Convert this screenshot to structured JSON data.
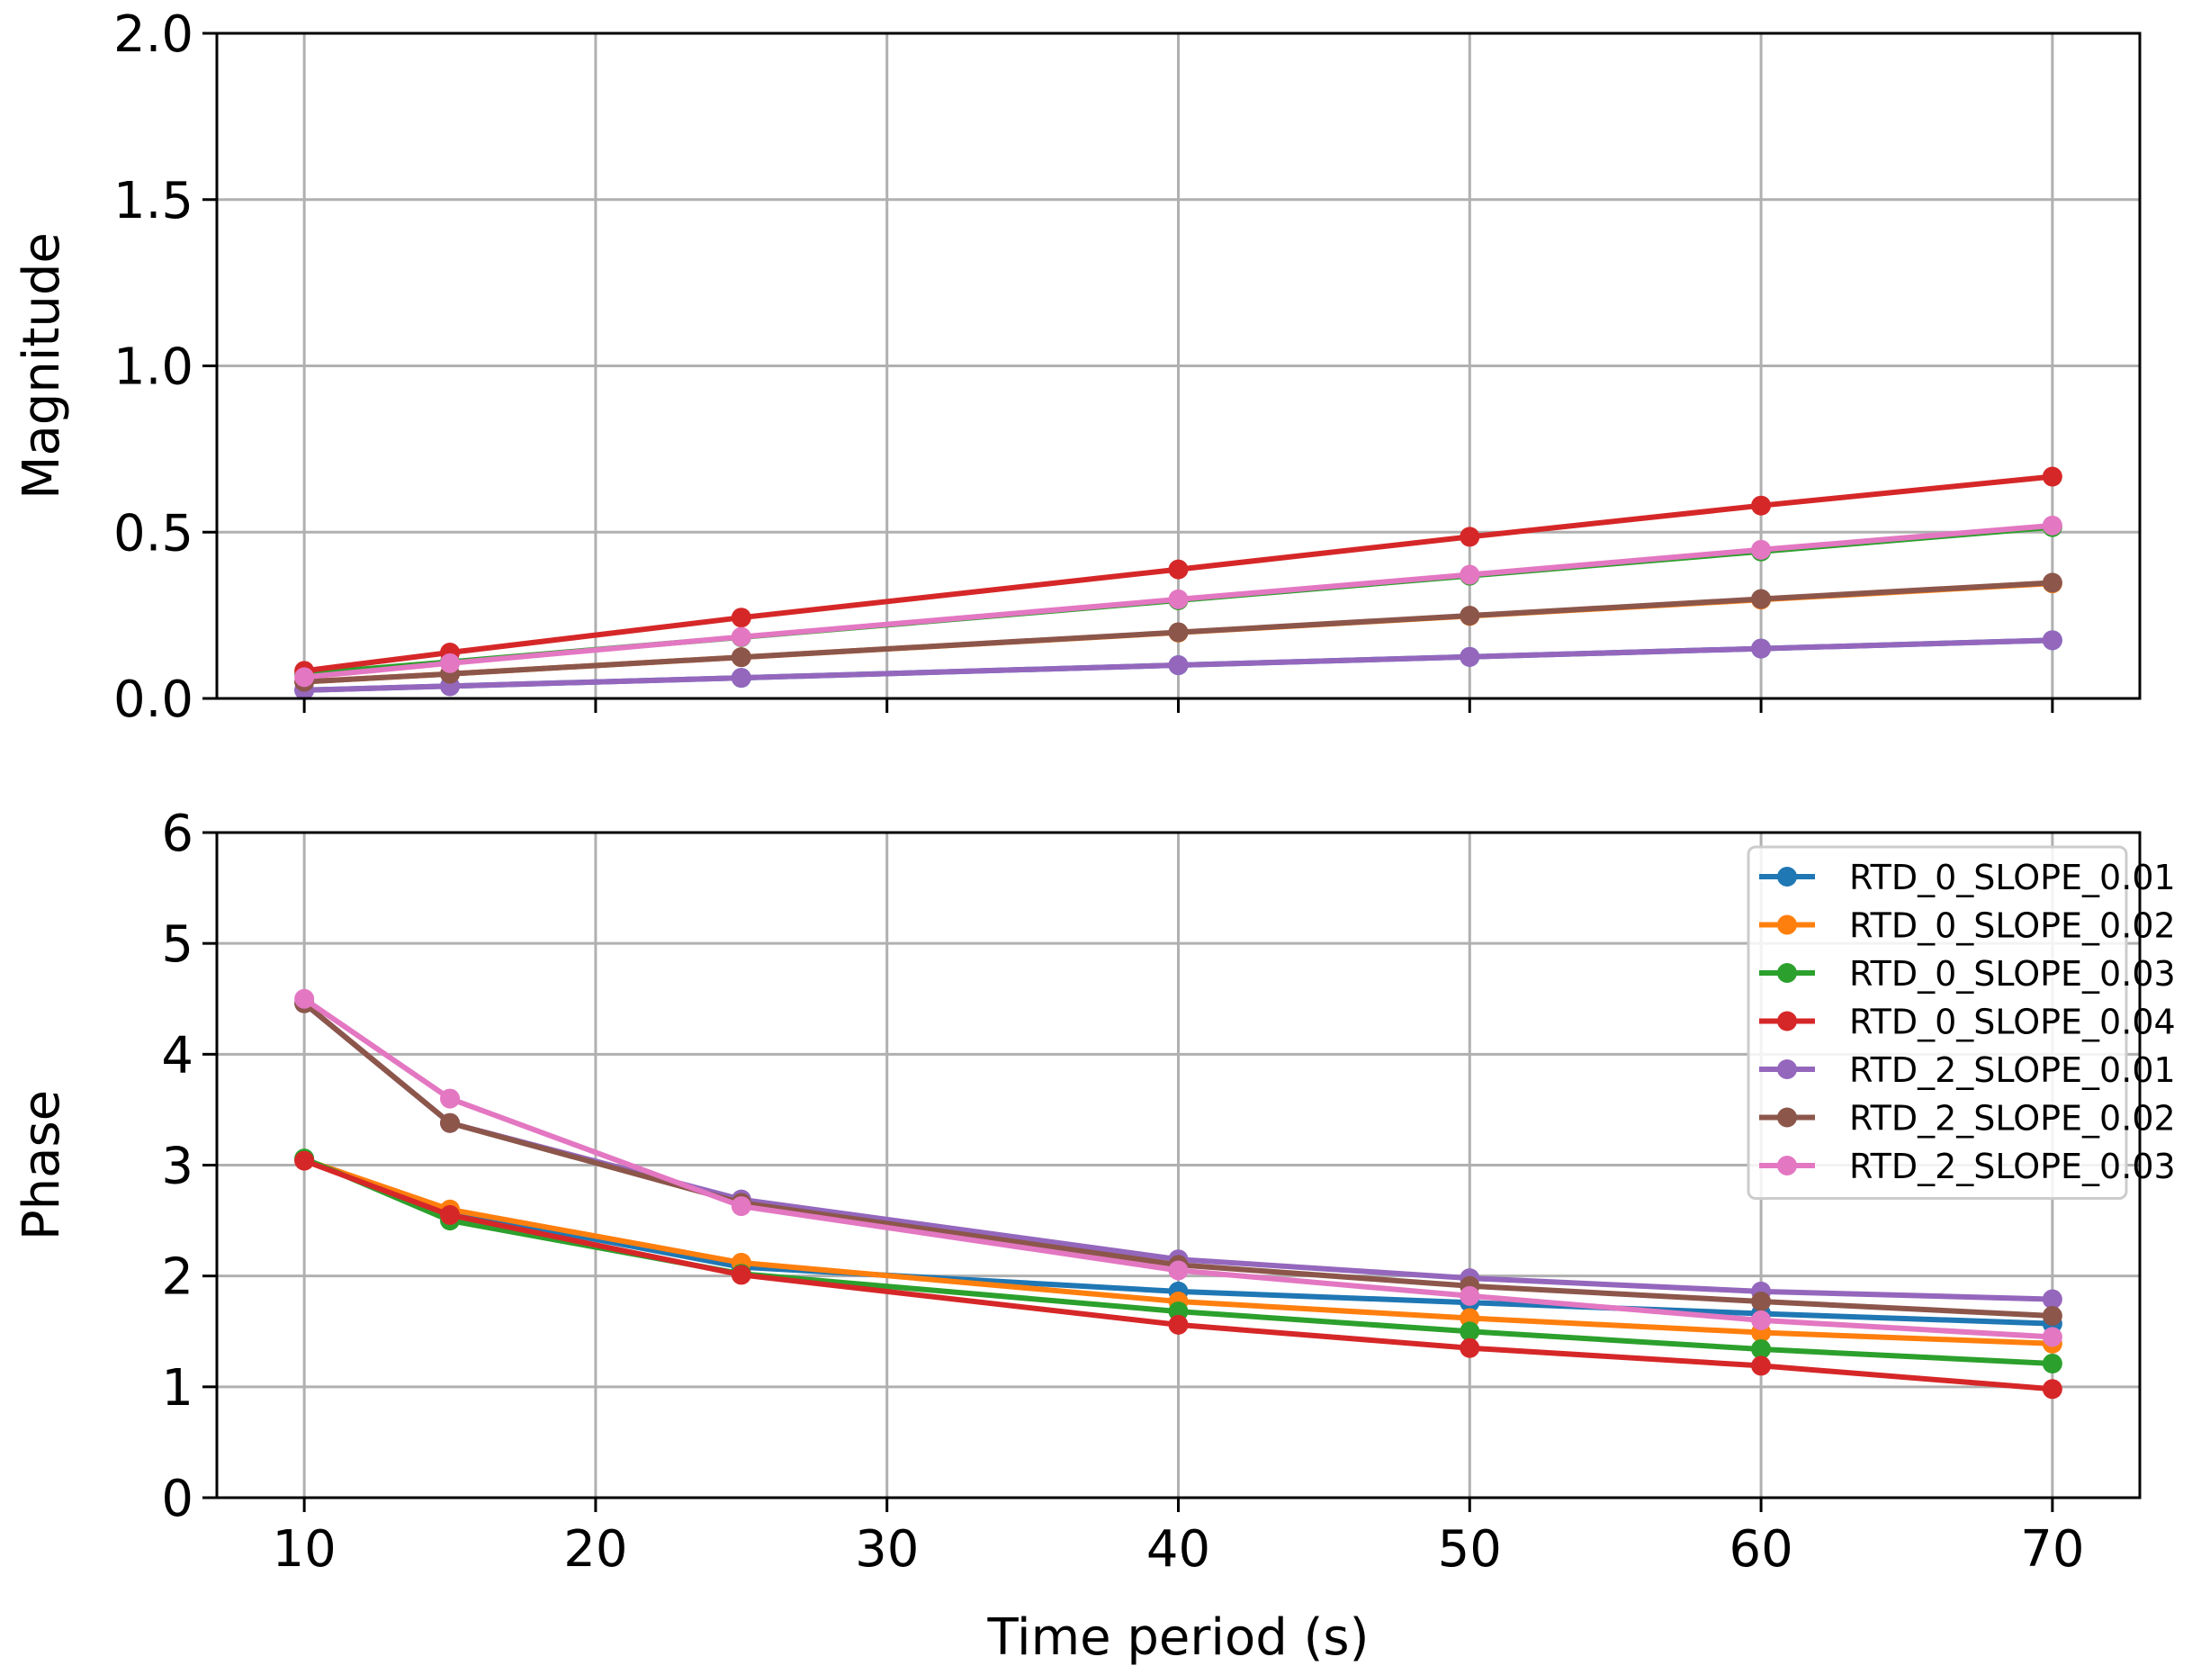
{
  "colors": {
    "RTD_0_SLOPE_0.01": "#1f77b4",
    "RTD_0_SLOPE_0.02": "#ff7f0e",
    "RTD_0_SLOPE_0.03": "#2ca02c",
    "RTD_0_SLOPE_0.04": "#d62728",
    "RTD_2_SLOPE_0.01": "#9467bd",
    "RTD_2_SLOPE_0.02": "#8c564b",
    "RTD_2_SLOPE_0.03": "#e377c2",
    "grid": "#b0b0b0"
  },
  "chart_data": [
    {
      "type": "line",
      "title": "",
      "xlabel": "",
      "ylabel": "Magnitude",
      "x": [
        10,
        15,
        25,
        40,
        50,
        60,
        70
      ],
      "xlim": [
        7,
        73
      ],
      "ylim": [
        0,
        2
      ],
      "xticks": [
        10,
        20,
        30,
        40,
        50,
        60,
        70
      ],
      "xtick_labels": [
        "",
        "",
        "",
        "",
        "",
        "",
        ""
      ],
      "yticks": [
        0,
        0.5,
        1,
        1.5,
        2
      ],
      "ytick_labels": [
        "0.0",
        "0.5",
        "1.0",
        "1.5",
        "2.0"
      ],
      "grid": true,
      "series": [
        {
          "name": "RTD_0_SLOPE_0.01",
          "values": [
            0.025,
            0.037,
            0.062,
            0.1,
            0.125,
            0.15,
            0.175
          ]
        },
        {
          "name": "RTD_0_SLOPE_0.02",
          "values": [
            0.05,
            0.074,
            0.124,
            0.198,
            0.248,
            0.297,
            0.346
          ]
        },
        {
          "name": "RTD_0_SLOPE_0.03",
          "values": [
            0.074,
            0.11,
            0.184,
            0.295,
            0.369,
            0.442,
            0.515
          ]
        },
        {
          "name": "RTD_0_SLOPE_0.04",
          "values": [
            0.083,
            0.138,
            0.243,
            0.388,
            0.486,
            0.58,
            0.667
          ]
        },
        {
          "name": "RTD_2_SLOPE_0.01",
          "values": [
            0.025,
            0.037,
            0.062,
            0.1,
            0.125,
            0.15,
            0.175
          ]
        },
        {
          "name": "RTD_2_SLOPE_0.02",
          "values": [
            0.05,
            0.074,
            0.124,
            0.199,
            0.249,
            0.299,
            0.348
          ]
        },
        {
          "name": "RTD_2_SLOPE_0.03",
          "values": [
            0.064,
            0.106,
            0.185,
            0.298,
            0.372,
            0.447,
            0.52
          ]
        }
      ]
    },
    {
      "type": "line",
      "title": "",
      "xlabel": "Time period (s)",
      "ylabel": "Phase",
      "x": [
        10,
        15,
        25,
        40,
        50,
        60,
        70
      ],
      "xlim": [
        7,
        73
      ],
      "ylim": [
        0,
        6
      ],
      "xticks": [
        10,
        20,
        30,
        40,
        50,
        60,
        70
      ],
      "xtick_labels": [
        "10",
        "20",
        "30",
        "40",
        "50",
        "60",
        "70"
      ],
      "yticks": [
        0,
        1,
        2,
        3,
        4,
        5,
        6
      ],
      "ytick_labels": [
        "0",
        "1",
        "2",
        "3",
        "4",
        "5",
        "6"
      ],
      "grid": true,
      "legend": {
        "placement": "upper-right",
        "entries": [
          "RTD_0_SLOPE_0.01",
          "RTD_0_SLOPE_0.02",
          "RTD_0_SLOPE_0.03",
          "RTD_0_SLOPE_0.04",
          "RTD_2_SLOPE_0.01",
          "RTD_2_SLOPE_0.02",
          "RTD_2_SLOPE_0.03"
        ]
      },
      "series": [
        {
          "name": "RTD_0_SLOPE_0.01",
          "values": [
            3.05,
            2.58,
            2.08,
            1.86,
            1.76,
            1.66,
            1.57
          ]
        },
        {
          "name": "RTD_0_SLOPE_0.02",
          "values": [
            3.05,
            2.6,
            2.12,
            1.77,
            1.62,
            1.49,
            1.39
          ]
        },
        {
          "name": "RTD_0_SLOPE_0.03",
          "values": [
            3.06,
            2.5,
            2.02,
            1.68,
            1.5,
            1.34,
            1.21
          ]
        },
        {
          "name": "RTD_0_SLOPE_0.04",
          "values": [
            3.04,
            2.55,
            2.01,
            1.56,
            1.35,
            1.19,
            0.98
          ]
        },
        {
          "name": "RTD_2_SLOPE_0.01",
          "values": [
            4.46,
            3.38,
            2.69,
            2.15,
            1.98,
            1.86,
            1.79
          ]
        },
        {
          "name": "RTD_2_SLOPE_0.02",
          "values": [
            4.46,
            3.38,
            2.66,
            2.1,
            1.91,
            1.77,
            1.64
          ]
        },
        {
          "name": "RTD_2_SLOPE_0.03",
          "values": [
            4.5,
            3.6,
            2.63,
            2.05,
            1.82,
            1.6,
            1.45
          ]
        }
      ]
    }
  ]
}
